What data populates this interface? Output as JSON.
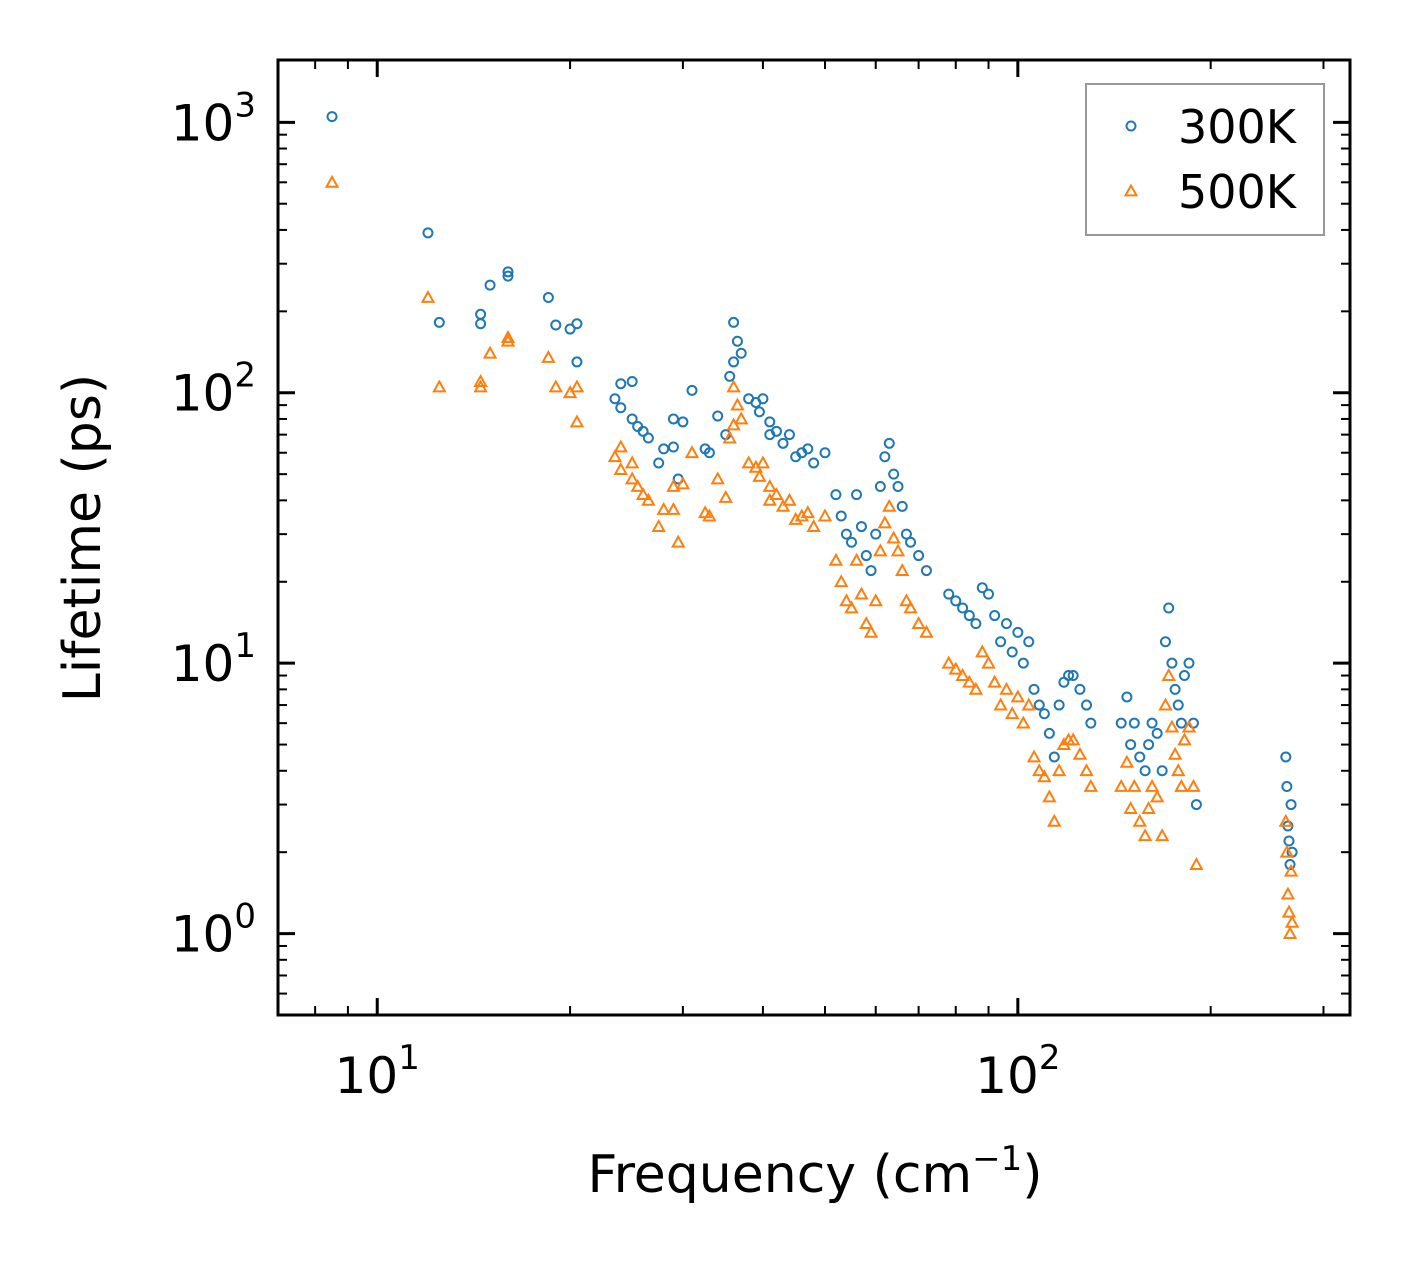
{
  "chart_data": {
    "type": "scatter",
    "title": "",
    "xlabel": "Frequency (cm",
    "xlabel_sup": "−1",
    "xlabel_close": ")",
    "ylabel": "Lifetime (ps)",
    "xscale": "log",
    "yscale": "log",
    "xlim": [
      7,
      330
    ],
    "ylim": [
      0.5,
      1700
    ],
    "x_ticks": [
      {
        "base": "10",
        "exp": "1",
        "value": 10
      },
      {
        "base": "10",
        "exp": "2",
        "value": 100
      }
    ],
    "y_ticks": [
      {
        "base": "10",
        "exp": "0",
        "value": 1
      },
      {
        "base": "10",
        "exp": "1",
        "value": 10
      },
      {
        "base": "10",
        "exp": "2",
        "value": 100
      },
      {
        "base": "10",
        "exp": "3",
        "value": 1000
      }
    ],
    "legend_position": "top-right",
    "series": [
      {
        "name": "300K",
        "marker": "circle",
        "color": "#1f77b4",
        "points": [
          [
            8.5,
            1050
          ],
          [
            12,
            390
          ],
          [
            12.5,
            182
          ],
          [
            14.5,
            195
          ],
          [
            14.5,
            180
          ],
          [
            15,
            250
          ],
          [
            16,
            280
          ],
          [
            16,
            270
          ],
          [
            18.5,
            225
          ],
          [
            19,
            178
          ],
          [
            20,
            172
          ],
          [
            20.5,
            180
          ],
          [
            20.5,
            130
          ],
          [
            23.5,
            95
          ],
          [
            24,
            108
          ],
          [
            24,
            88
          ],
          [
            25,
            110
          ],
          [
            25,
            80
          ],
          [
            25.5,
            75
          ],
          [
            26,
            72
          ],
          [
            26.5,
            68
          ],
          [
            27.5,
            55
          ],
          [
            28,
            62
          ],
          [
            29,
            80
          ],
          [
            29,
            63
          ],
          [
            29.5,
            48
          ],
          [
            30,
            78
          ],
          [
            31,
            102
          ],
          [
            32.5,
            62
          ],
          [
            33,
            60
          ],
          [
            34,
            82
          ],
          [
            35,
            70
          ],
          [
            35.5,
            115
          ],
          [
            36,
            182
          ],
          [
            36.5,
            155
          ],
          [
            36,
            130
          ],
          [
            37,
            140
          ],
          [
            38,
            95
          ],
          [
            39,
            92
          ],
          [
            39.5,
            85
          ],
          [
            40,
            95
          ],
          [
            41,
            78
          ],
          [
            41,
            70
          ],
          [
            42,
            72
          ],
          [
            43,
            65
          ],
          [
            44,
            70
          ],
          [
            45,
            58
          ],
          [
            46,
            60
          ],
          [
            47,
            62
          ],
          [
            48,
            55
          ],
          [
            50,
            60
          ],
          [
            52,
            42
          ],
          [
            53,
            35
          ],
          [
            54,
            30
          ],
          [
            55,
            28
          ],
          [
            56,
            42
          ],
          [
            57,
            32
          ],
          [
            58,
            25
          ],
          [
            59,
            22
          ],
          [
            60,
            30
          ],
          [
            61,
            45
          ],
          [
            62,
            58
          ],
          [
            63,
            65
          ],
          [
            64,
            50
          ],
          [
            65,
            45
          ],
          [
            66,
            38
          ],
          [
            67,
            30
          ],
          [
            68,
            28
          ],
          [
            70,
            25
          ],
          [
            72,
            22
          ],
          [
            78,
            18
          ],
          [
            80,
            17
          ],
          [
            82,
            16
          ],
          [
            84,
            15
          ],
          [
            86,
            14
          ],
          [
            88,
            19
          ],
          [
            90,
            18
          ],
          [
            92,
            15
          ],
          [
            94,
            12
          ],
          [
            96,
            14
          ],
          [
            98,
            11
          ],
          [
            100,
            13
          ],
          [
            102,
            10
          ],
          [
            104,
            12
          ],
          [
            106,
            8
          ],
          [
            108,
            7
          ],
          [
            110,
            6.5
          ],
          [
            112,
            5.5
          ],
          [
            114,
            4.5
          ],
          [
            116,
            7
          ],
          [
            118,
            8.5
          ],
          [
            120,
            9
          ],
          [
            122,
            9
          ],
          [
            125,
            8
          ],
          [
            128,
            7
          ],
          [
            130,
            6
          ],
          [
            145,
            6
          ],
          [
            148,
            7.5
          ],
          [
            150,
            5
          ],
          [
            152,
            6
          ],
          [
            155,
            4.5
          ],
          [
            158,
            4
          ],
          [
            160,
            5
          ],
          [
            162,
            6
          ],
          [
            165,
            5.5
          ],
          [
            168,
            4
          ],
          [
            170,
            12
          ],
          [
            172,
            16
          ],
          [
            174,
            10
          ],
          [
            176,
            8
          ],
          [
            178,
            7
          ],
          [
            180,
            6
          ],
          [
            182,
            9
          ],
          [
            185,
            10
          ],
          [
            188,
            6
          ],
          [
            190,
            3
          ],
          [
            262,
            4.5
          ],
          [
            263,
            3.5
          ],
          [
            264,
            2.5
          ],
          [
            265,
            2.2
          ],
          [
            266,
            1.8
          ],
          [
            267,
            3.0
          ],
          [
            268,
            2.0
          ]
        ]
      },
      {
        "name": "500K",
        "marker": "triangle",
        "color": "#ff7f0e",
        "points": [
          [
            8.5,
            600
          ],
          [
            12,
            225
          ],
          [
            12.5,
            105
          ],
          [
            14.5,
            110
          ],
          [
            14.5,
            105
          ],
          [
            15,
            140
          ],
          [
            16,
            160
          ],
          [
            16,
            155
          ],
          [
            18.5,
            135
          ],
          [
            19,
            105
          ],
          [
            20,
            100
          ],
          [
            20.5,
            105
          ],
          [
            20.5,
            78
          ],
          [
            23.5,
            58
          ],
          [
            24,
            63
          ],
          [
            24,
            52
          ],
          [
            25,
            55
          ],
          [
            25,
            48
          ],
          [
            25.5,
            45
          ],
          [
            26,
            42
          ],
          [
            26.5,
            40
          ],
          [
            27.5,
            32
          ],
          [
            28,
            37
          ],
          [
            29,
            45
          ],
          [
            29,
            37
          ],
          [
            29.5,
            28
          ],
          [
            30,
            46
          ],
          [
            31,
            60
          ],
          [
            32.5,
            36
          ],
          [
            33,
            35
          ],
          [
            34,
            48
          ],
          [
            35,
            41
          ],
          [
            35.5,
            68
          ],
          [
            36,
            105
          ],
          [
            36.5,
            90
          ],
          [
            36,
            76
          ],
          [
            37,
            80
          ],
          [
            38,
            55
          ],
          [
            39,
            53
          ],
          [
            39.5,
            49
          ],
          [
            40,
            55
          ],
          [
            41,
            45
          ],
          [
            41,
            40
          ],
          [
            42,
            42
          ],
          [
            43,
            38
          ],
          [
            44,
            40
          ],
          [
            45,
            34
          ],
          [
            46,
            35
          ],
          [
            47,
            36
          ],
          [
            48,
            32
          ],
          [
            50,
            35
          ],
          [
            52,
            24
          ],
          [
            53,
            20
          ],
          [
            54,
            17
          ],
          [
            55,
            16
          ],
          [
            56,
            24
          ],
          [
            57,
            18
          ],
          [
            58,
            14
          ],
          [
            59,
            13
          ],
          [
            60,
            17
          ],
          [
            61,
            26
          ],
          [
            62,
            33
          ],
          [
            63,
            38
          ],
          [
            64,
            29
          ],
          [
            65,
            26
          ],
          [
            66,
            22
          ],
          [
            67,
            17
          ],
          [
            68,
            16
          ],
          [
            70,
            14
          ],
          [
            72,
            13
          ],
          [
            78,
            10
          ],
          [
            80,
            9.5
          ],
          [
            82,
            9
          ],
          [
            84,
            8.5
          ],
          [
            86,
            8
          ],
          [
            88,
            11
          ],
          [
            90,
            10
          ],
          [
            92,
            8.5
          ],
          [
            94,
            7
          ],
          [
            96,
            8
          ],
          [
            98,
            6.5
          ],
          [
            100,
            7.5
          ],
          [
            102,
            6
          ],
          [
            104,
            7
          ],
          [
            106,
            4.5
          ],
          [
            108,
            4
          ],
          [
            110,
            3.8
          ],
          [
            112,
            3.2
          ],
          [
            114,
            2.6
          ],
          [
            116,
            4
          ],
          [
            118,
            5
          ],
          [
            120,
            5.2
          ],
          [
            122,
            5.2
          ],
          [
            125,
            4.6
          ],
          [
            128,
            4
          ],
          [
            130,
            3.5
          ],
          [
            145,
            3.5
          ],
          [
            148,
            4.3
          ],
          [
            150,
            2.9
          ],
          [
            152,
            3.5
          ],
          [
            155,
            2.6
          ],
          [
            158,
            2.3
          ],
          [
            160,
            2.9
          ],
          [
            162,
            3.5
          ],
          [
            165,
            3.2
          ],
          [
            168,
            2.3
          ],
          [
            170,
            7
          ],
          [
            172,
            9
          ],
          [
            174,
            5.8
          ],
          [
            176,
            4.6
          ],
          [
            178,
            4
          ],
          [
            180,
            3.5
          ],
          [
            182,
            5.2
          ],
          [
            185,
            5.8
          ],
          [
            188,
            3.5
          ],
          [
            190,
            1.8
          ],
          [
            262,
            2.6
          ],
          [
            263,
            2.0
          ],
          [
            264,
            1.4
          ],
          [
            265,
            1.2
          ],
          [
            266,
            1.0
          ],
          [
            267,
            1.7
          ],
          [
            268,
            1.1
          ]
        ]
      }
    ]
  }
}
